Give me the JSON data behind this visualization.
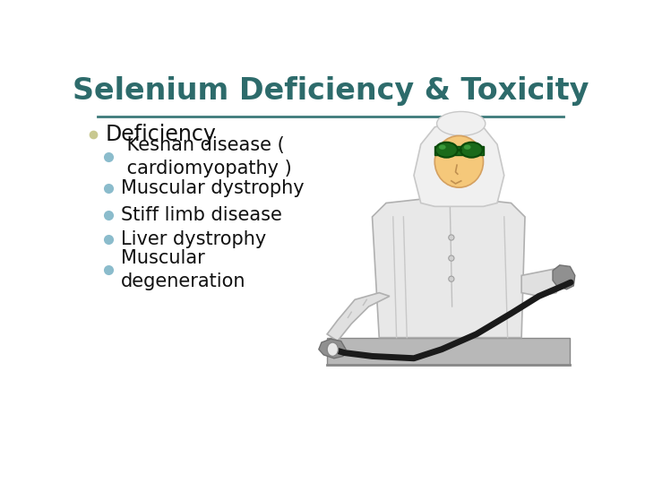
{
  "title": "Selenium Deficiency & Toxicity",
  "title_color": "#2D6B6B",
  "title_fontsize": 24,
  "title_fontweight": "bold",
  "background_color": "#FFFFFF",
  "border_color": "#3D7A7A",
  "border_linewidth": 2.5,
  "separator_color": "#3D7A7A",
  "separator_linewidth": 2.0,
  "section_header": "Deficiency",
  "section_header_fontsize": 17,
  "section_header_color": "#111111",
  "section_bullet_color": "#C8C890",
  "bullet_color": "#8BBCCC",
  "bullet_items": [
    " Keshan disease (\n cardiomyopathy )",
    "Muscular dystrophy",
    "Stiff limb disease",
    "Liver dystrophy",
    "Muscular\ndegeneration"
  ],
  "bullet_fontsize": 15,
  "bullet_text_color": "#111111",
  "fig_bg": "#FFFFFF"
}
